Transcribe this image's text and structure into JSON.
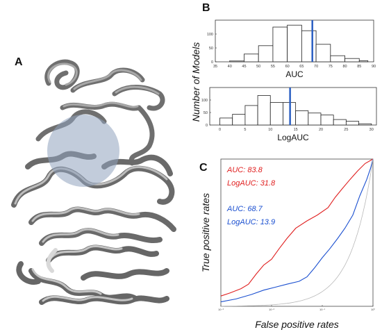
{
  "panels": {
    "a": {
      "letter": "A"
    },
    "b": {
      "letter": "B"
    },
    "c": {
      "letter": "C"
    }
  },
  "shared_labels": {
    "b_ylabel": "Number of Models"
  },
  "colors": {
    "protein": "#8a8a8a",
    "sphere": "#8fa3bd",
    "marker": "#2b5fc2",
    "red": "#e02020",
    "blue": "#1a4fd0",
    "random": "#b8b8b8"
  },
  "chart_data": [
    {
      "id": "auc_hist",
      "type": "bar",
      "xlabel": "AUC",
      "ylabel": "Number of Models",
      "xlim": [
        35,
        90
      ],
      "ylim": [
        0,
        150
      ],
      "xticks": [
        "35",
        "40",
        "45",
        "50",
        "55",
        "60",
        "65",
        "70",
        "75",
        "80",
        "85",
        "90"
      ],
      "yticks": [
        "0",
        "50",
        "100"
      ],
      "bins": [
        {
          "x0": 40,
          "x1": 45,
          "count": 3
        },
        {
          "x0": 45,
          "x1": 50,
          "count": 28
        },
        {
          "x0": 50,
          "x1": 55,
          "count": 58
        },
        {
          "x0": 55,
          "x1": 60,
          "count": 125
        },
        {
          "x0": 60,
          "x1": 65,
          "count": 132
        },
        {
          "x0": 65,
          "x1": 70,
          "count": 112
        },
        {
          "x0": 70,
          "x1": 75,
          "count": 63
        },
        {
          "x0": 75,
          "x1": 80,
          "count": 22
        },
        {
          "x0": 80,
          "x1": 85,
          "count": 12
        },
        {
          "x0": 85,
          "x1": 88,
          "count": 4
        }
      ],
      "marker_x": 68.7
    },
    {
      "id": "logauc_hist",
      "type": "bar",
      "xlabel": "LogAUC",
      "ylabel": "Number of Models",
      "xlim": [
        -2,
        31
      ],
      "ylim": [
        0,
        150
      ],
      "xticks": [
        "0",
        "5",
        "10",
        "15",
        "20",
        "25",
        "30"
      ],
      "yticks": [
        "0",
        "50",
        "100"
      ],
      "bins": [
        {
          "x0": 0,
          "x1": 2.5,
          "count": 28
        },
        {
          "x0": 2.5,
          "x1": 5,
          "count": 43
        },
        {
          "x0": 5,
          "x1": 7.5,
          "count": 78
        },
        {
          "x0": 7.5,
          "x1": 10,
          "count": 118
        },
        {
          "x0": 10,
          "x1": 12.5,
          "count": 90
        },
        {
          "x0": 12.5,
          "x1": 15,
          "count": 90
        },
        {
          "x0": 15,
          "x1": 17.5,
          "count": 57
        },
        {
          "x0": 17.5,
          "x1": 20,
          "count": 48
        },
        {
          "x0": 20,
          "x1": 22.5,
          "count": 40
        },
        {
          "x0": 22.5,
          "x1": 25,
          "count": 22
        },
        {
          "x0": 25,
          "x1": 27.5,
          "count": 15
        },
        {
          "x0": 27.5,
          "x1": 30,
          "count": 5
        }
      ],
      "marker_x": 13.9
    },
    {
      "id": "roc",
      "type": "line",
      "xlabel": "False positive rates",
      "ylabel": "True positive rates",
      "x_scale": "log",
      "xlim": [
        0.001,
        1
      ],
      "ylim": [
        0,
        1
      ],
      "xticks": [
        "10⁻³",
        "10⁻²",
        "10⁻¹",
        "10⁰"
      ],
      "series": [
        {
          "key": "red",
          "points": [
            [
              0.001,
              0.07
            ],
            [
              0.0015,
              0.09
            ],
            [
              0.0025,
              0.12
            ],
            [
              0.0035,
              0.15
            ],
            [
              0.005,
              0.22
            ],
            [
              0.007,
              0.28
            ],
            [
              0.01,
              0.32
            ],
            [
              0.014,
              0.39
            ],
            [
              0.02,
              0.46
            ],
            [
              0.03,
              0.53
            ],
            [
              0.05,
              0.58
            ],
            [
              0.08,
              0.62
            ],
            [
              0.13,
              0.67
            ],
            [
              0.18,
              0.74
            ],
            [
              0.25,
              0.8
            ],
            [
              0.35,
              0.86
            ],
            [
              0.5,
              0.92
            ],
            [
              0.7,
              0.97
            ],
            [
              1,
              1
            ]
          ],
          "annotation": {
            "auc_label": "AUC: 83.8",
            "logauc_label": "LogAUC: 31.8"
          }
        },
        {
          "key": "blue",
          "points": [
            [
              0.001,
              0.03
            ],
            [
              0.002,
              0.05
            ],
            [
              0.004,
              0.08
            ],
            [
              0.007,
              0.11
            ],
            [
              0.012,
              0.13
            ],
            [
              0.02,
              0.15
            ],
            [
              0.035,
              0.17
            ],
            [
              0.05,
              0.2
            ],
            [
              0.07,
              0.26
            ],
            [
              0.1,
              0.33
            ],
            [
              0.14,
              0.39
            ],
            [
              0.2,
              0.46
            ],
            [
              0.28,
              0.53
            ],
            [
              0.4,
              0.62
            ],
            [
              0.55,
              0.75
            ],
            [
              0.75,
              0.86
            ],
            [
              0.9,
              0.94
            ],
            [
              1,
              1
            ]
          ],
          "annotation": {
            "auc_label": "AUC: 68.7",
            "logauc_label": "LogAUC: 13.9"
          }
        },
        {
          "key": "random",
          "points": "identity"
        }
      ]
    }
  ]
}
